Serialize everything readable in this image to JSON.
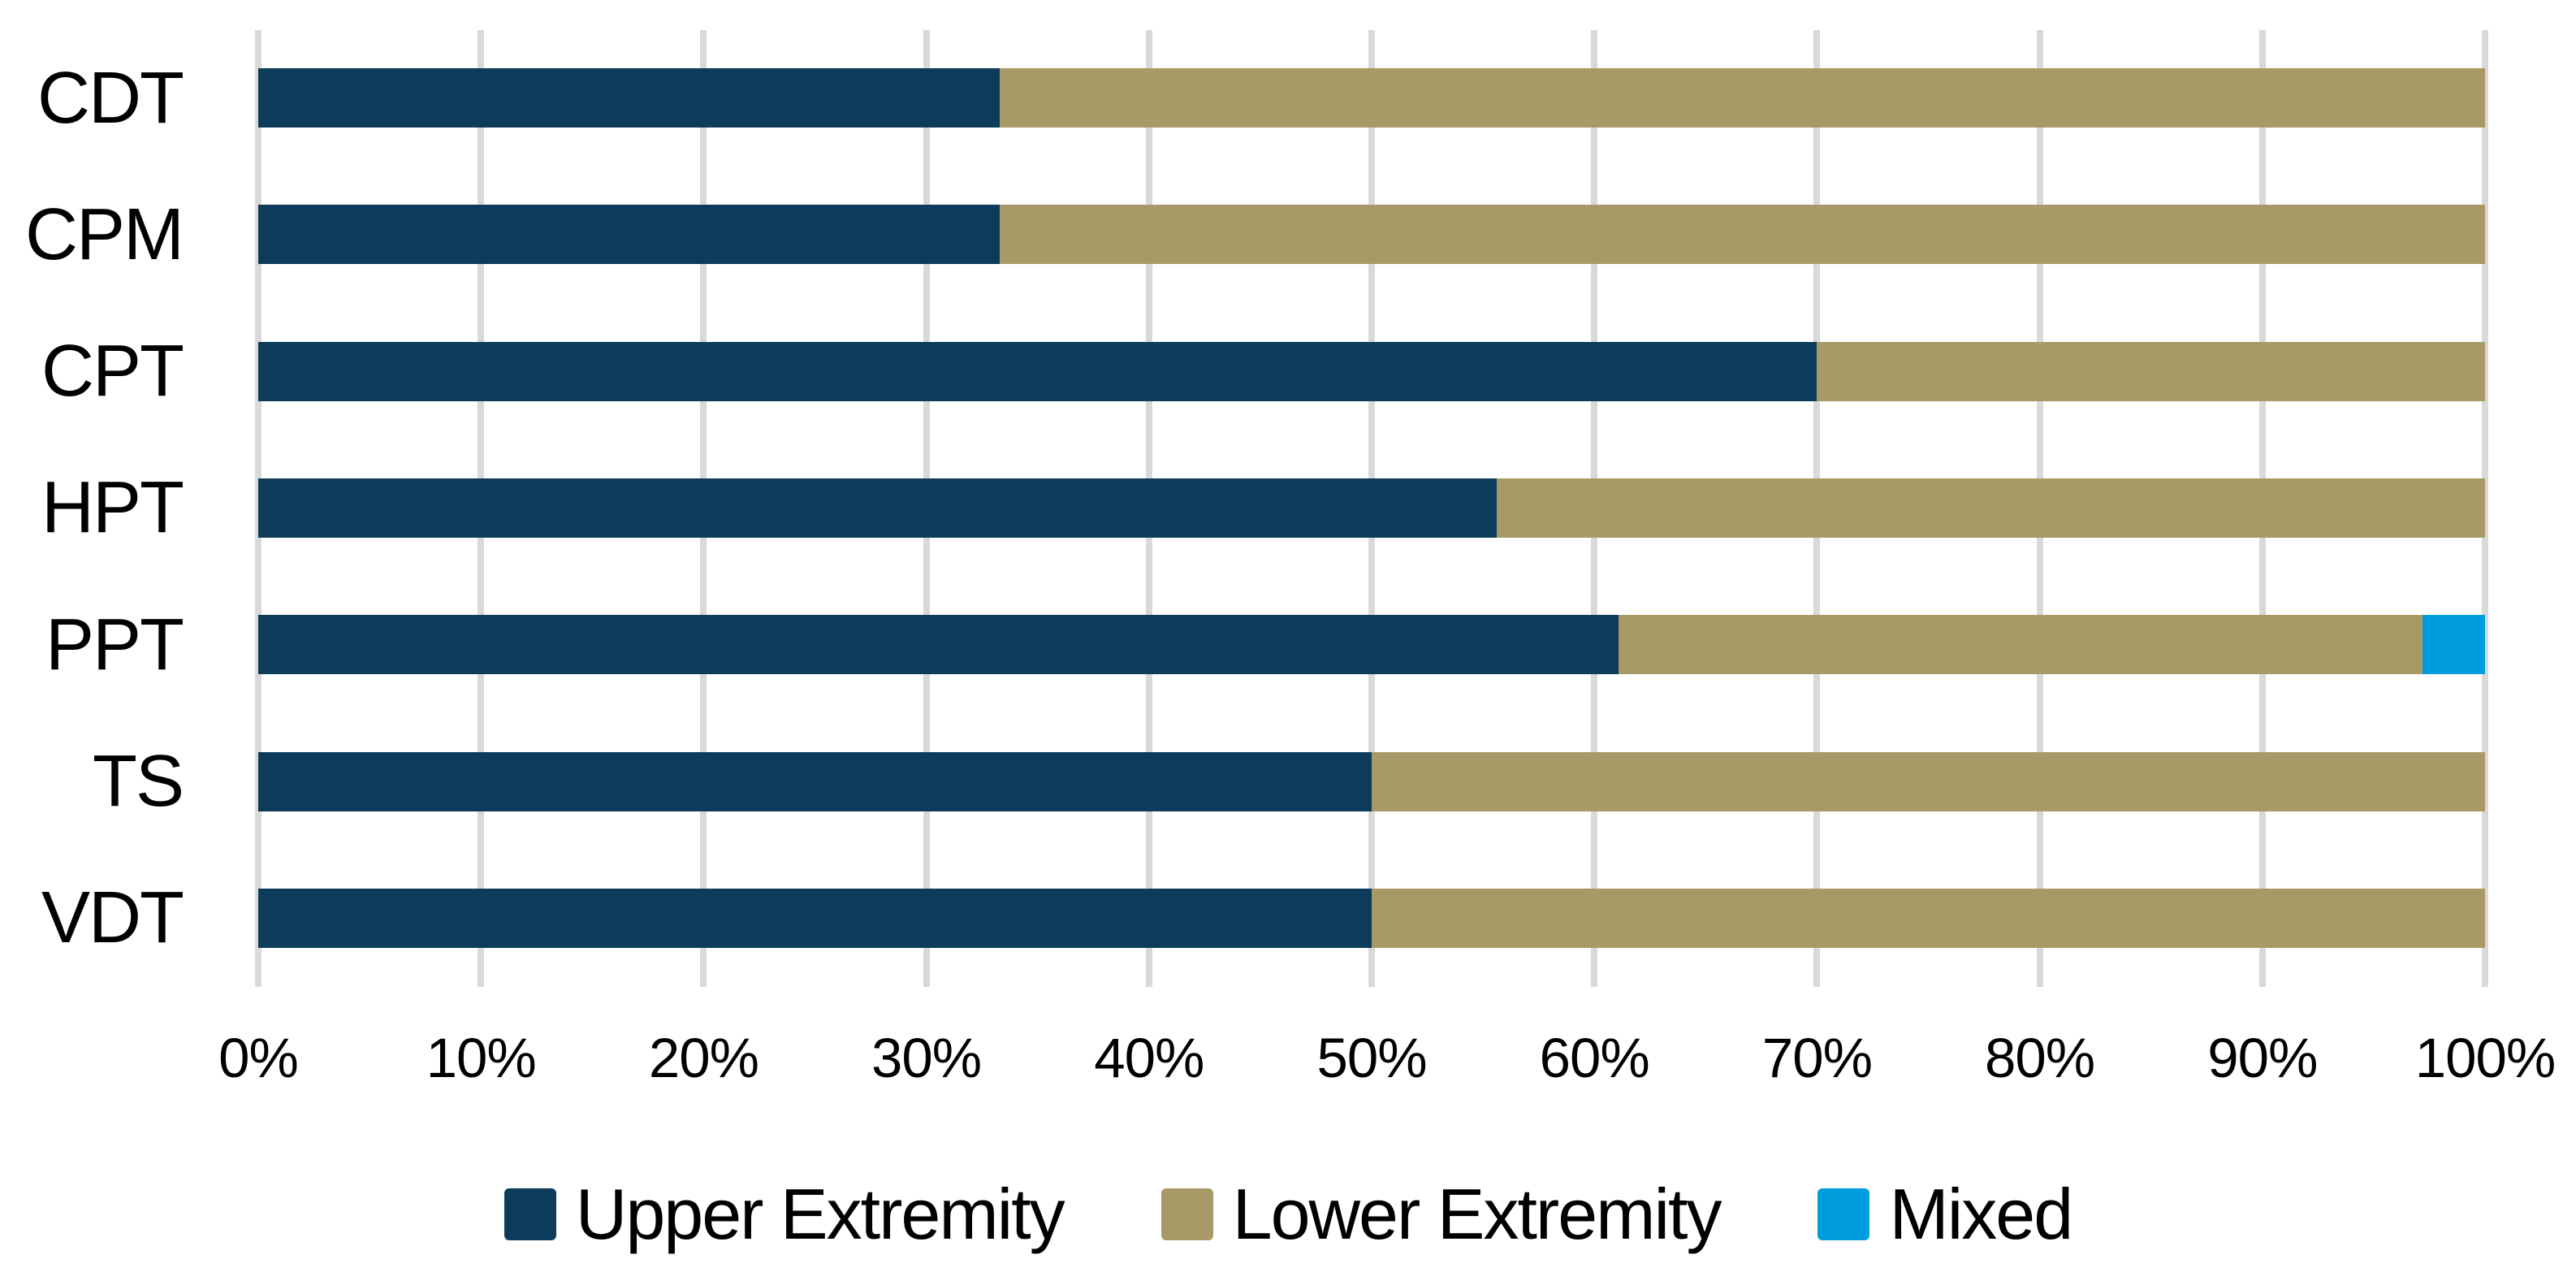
{
  "chart_data": {
    "type": "bar",
    "orientation": "horizontal",
    "stacked": true,
    "stacked_total": 100,
    "title": "",
    "xlabel": "",
    "ylabel": "",
    "categories": [
      "CDT",
      "CPM",
      "CPT",
      "HPT",
      "PPT",
      "TS",
      "VDT"
    ],
    "series": [
      {
        "name": "Upper Extremity",
        "color": "#0d3c5b",
        "values": [
          33.3,
          33.3,
          70.0,
          55.6,
          61.1,
          50.0,
          50.0
        ]
      },
      {
        "name": "Lower Extremity",
        "color": "#a89a66",
        "values": [
          66.7,
          66.7,
          30.0,
          44.4,
          36.1,
          50.0,
          50.0
        ]
      },
      {
        "name": "Mixed",
        "color": "#009dde",
        "values": [
          0,
          0,
          0,
          0,
          2.8,
          0,
          0
        ]
      }
    ],
    "x_axis": {
      "min": 0,
      "max": 100,
      "unit": "%",
      "tick_step": 10,
      "ticks": [
        "0%",
        "10%",
        "20%",
        "30%",
        "40%",
        "50%",
        "60%",
        "70%",
        "80%",
        "90%",
        "100%"
      ]
    },
    "grid": {
      "vertical": true,
      "horizontal": false,
      "color": "#d9d9d9"
    },
    "legend": {
      "position": "bottom",
      "entries": [
        "Upper Extremity",
        "Lower Extremity",
        "Mixed"
      ]
    }
  },
  "colors": {
    "background": "#ffffff",
    "text": "#000000",
    "gridline": "#d9d9d9"
  }
}
